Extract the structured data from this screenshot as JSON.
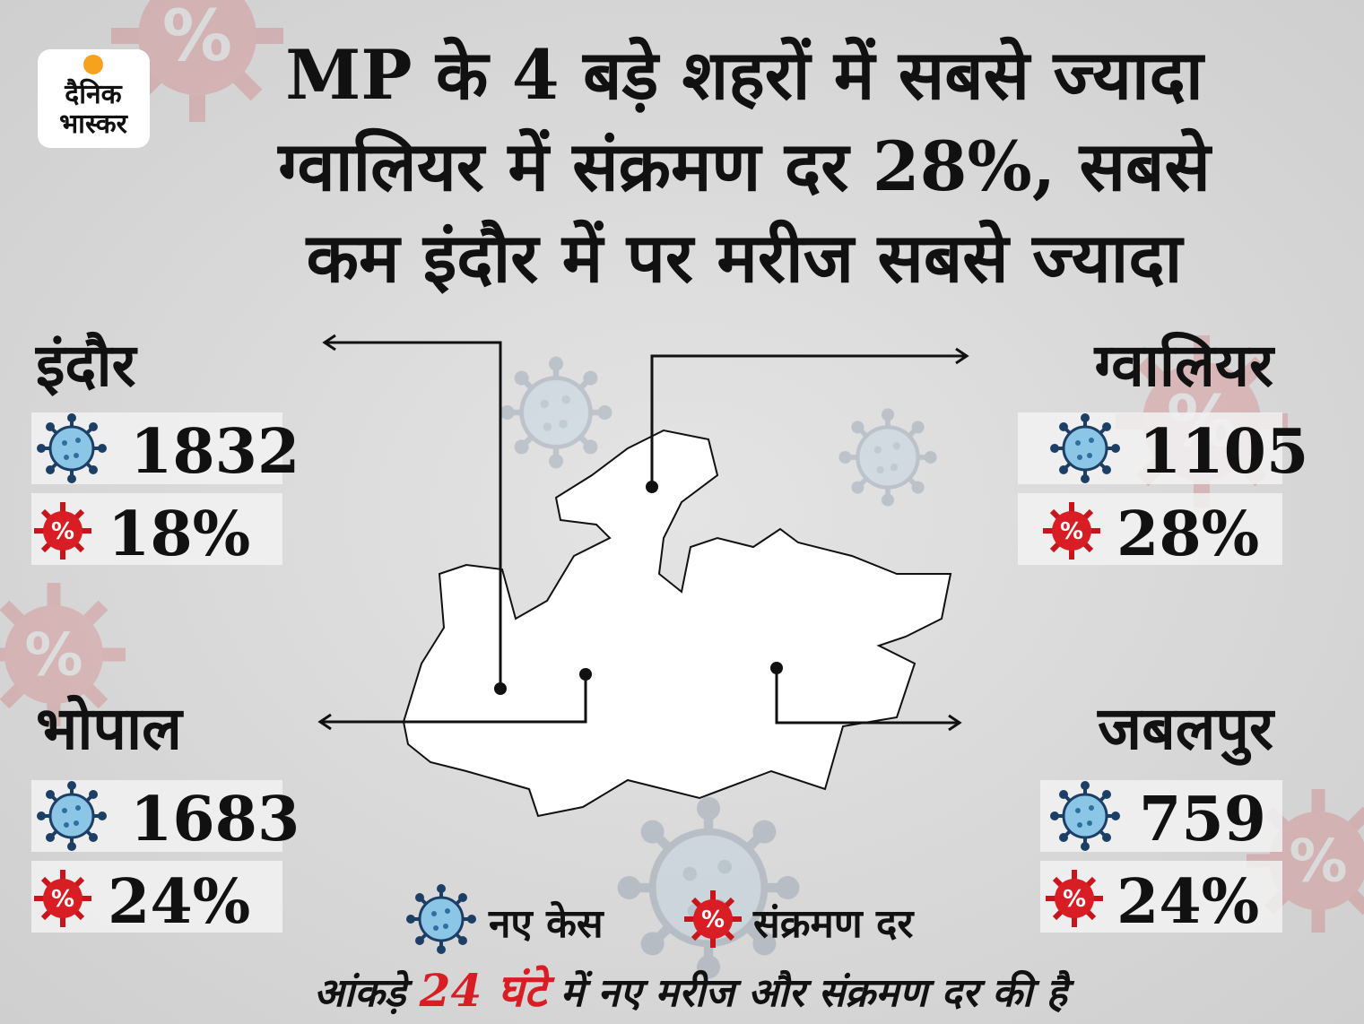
{
  "logo": {
    "line1": "दैनिक",
    "line2": "भास्कर"
  },
  "title": [
    "MP के 4 बड़े शहरों में सबसे ज्यादा",
    "ग्वालियर में संक्रमण दर 28%, सबसे",
    "कम इंदौर में पर मरीज सबसे ज्यादा"
  ],
  "cities": [
    {
      "name": "इंदौर",
      "cases": "1832",
      "rate": "18%"
    },
    {
      "name": "ग्वालियर",
      "cases": "1105",
      "rate": "28%"
    },
    {
      "name": "भोपाल",
      "cases": "1683",
      "rate": "24%"
    },
    {
      "name": "जबलपुर",
      "cases": "759",
      "rate": "24%"
    }
  ],
  "legend": {
    "cases": "नए केस",
    "rate": "संक्रमण दर"
  },
  "footer": {
    "before": "आंकड़े",
    "highlight": "24 घंटे",
    "after": "में नए मरीज और संक्रमण दर की है"
  }
}
